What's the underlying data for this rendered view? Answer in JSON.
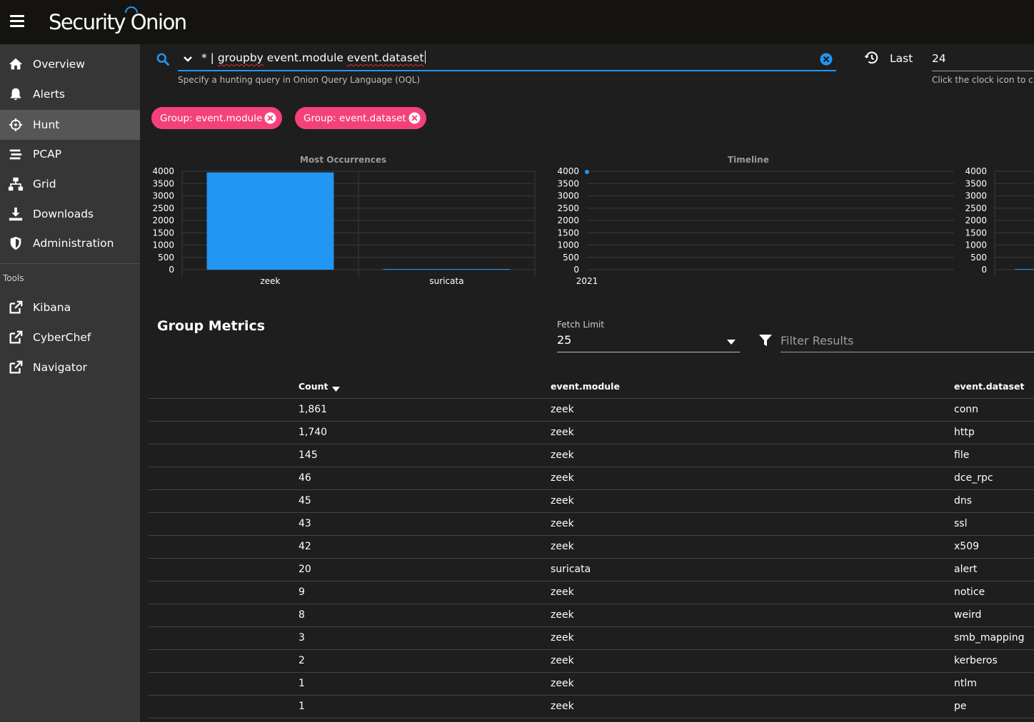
{
  "app": {
    "logo": "Security Onion"
  },
  "sidebar": {
    "items": [
      {
        "label": "Overview",
        "icon": "home-icon"
      },
      {
        "label": "Alerts",
        "icon": "bell-icon"
      },
      {
        "label": "Hunt",
        "icon": "crosshairs-icon",
        "active": true
      },
      {
        "label": "PCAP",
        "icon": "stream-icon"
      },
      {
        "label": "Grid",
        "icon": "network-icon"
      },
      {
        "label": "Downloads",
        "icon": "download-icon"
      },
      {
        "label": "Administration",
        "icon": "shield-icon"
      }
    ],
    "tools_header": "Tools",
    "tools": [
      {
        "label": "Kibana",
        "icon": "external-link-icon"
      },
      {
        "label": "CyberChef",
        "icon": "external-link-icon"
      },
      {
        "label": "Navigator",
        "icon": "external-link-icon"
      }
    ]
  },
  "query": {
    "prefix": "* | ",
    "word1": "groupby",
    "middle": " event.module ",
    "word2": "event.dataset",
    "hint": "Specify a hunting query in Onion Query Language (OQL)"
  },
  "time": {
    "label": "Last",
    "value": "24",
    "hint": "Click the clock icon to c"
  },
  "chips": [
    {
      "label": "Group: event.module"
    },
    {
      "label": "Group: event.dataset"
    }
  ],
  "colors": {
    "accent": "#2196f3",
    "chip": "#f5417a",
    "sidebar": "#363636",
    "active": "#565656"
  },
  "chart_data": [
    {
      "type": "bar",
      "title": "Most Occurrences",
      "categories": [
        "zeek",
        "suricata"
      ],
      "values": [
        3951,
        20
      ],
      "ylim": [
        0,
        4000
      ],
      "yticks": [
        0,
        500,
        1000,
        1500,
        2000,
        2500,
        3000,
        3500,
        4000
      ]
    },
    {
      "type": "scatter",
      "title": "Timeline",
      "x": [
        "2021"
      ],
      "values": [
        3971
      ],
      "ylim": [
        0,
        4000
      ],
      "yticks": [
        0,
        500,
        1000,
        1500,
        2000,
        2500,
        3000,
        3500,
        4000
      ]
    },
    {
      "type": "bar",
      "title": "",
      "values": [
        20
      ],
      "ylim": [
        0,
        4000
      ],
      "yticks": [
        0,
        500,
        1000,
        1500,
        2000,
        2500,
        3000,
        3500,
        4000
      ]
    }
  ],
  "metrics": {
    "title": "Group Metrics",
    "fetch_limit_label": "Fetch Limit",
    "fetch_limit_value": "25",
    "filter_placeholder": "Filter Results",
    "columns": [
      "Count",
      "event.module",
      "event.dataset"
    ],
    "rows": [
      [
        "1,861",
        "zeek",
        "conn"
      ],
      [
        "1,740",
        "zeek",
        "http"
      ],
      [
        "145",
        "zeek",
        "file"
      ],
      [
        "46",
        "zeek",
        "dce_rpc"
      ],
      [
        "45",
        "zeek",
        "dns"
      ],
      [
        "43",
        "zeek",
        "ssl"
      ],
      [
        "42",
        "zeek",
        "x509"
      ],
      [
        "20",
        "suricata",
        "alert"
      ],
      [
        "9",
        "zeek",
        "notice"
      ],
      [
        "8",
        "zeek",
        "weird"
      ],
      [
        "3",
        "zeek",
        "smb_mapping"
      ],
      [
        "2",
        "zeek",
        "kerberos"
      ],
      [
        "1",
        "zeek",
        "ntlm"
      ],
      [
        "1",
        "zeek",
        "pe"
      ]
    ]
  }
}
